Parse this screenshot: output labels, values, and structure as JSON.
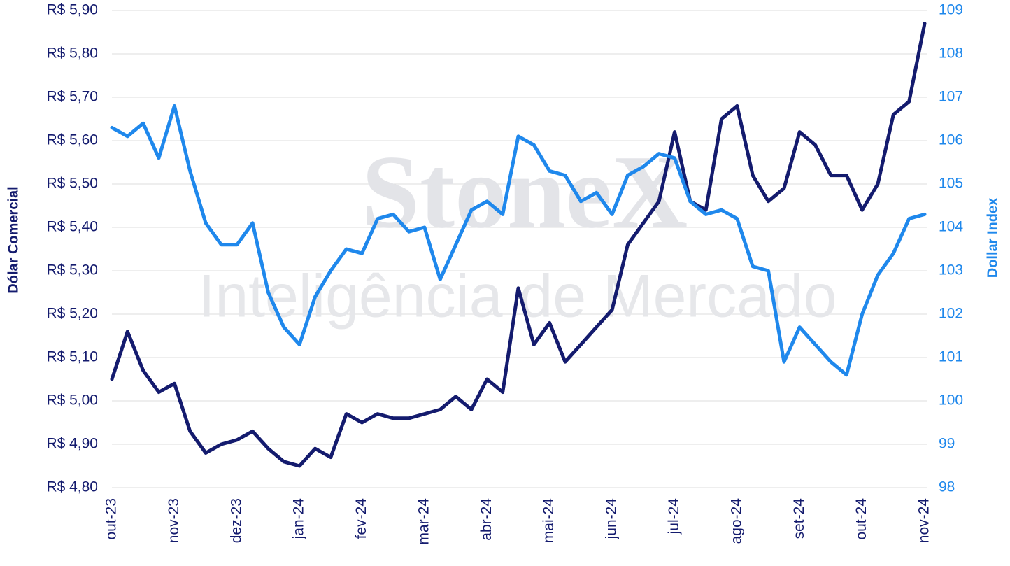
{
  "chart_data": {
    "type": "line",
    "watermark": [
      "StoneX",
      "Inteligência de Mercado"
    ],
    "y_label": "Dólar Comercial",
    "y2_label": "Dollar Index",
    "categories": [
      "out-23",
      null,
      null,
      null,
      "nov-23",
      null,
      null,
      null,
      "dez-23",
      null,
      null,
      null,
      "jan-24",
      null,
      null,
      null,
      "fev-24",
      null,
      null,
      null,
      "mar-24",
      null,
      null,
      null,
      "abr-24",
      null,
      null,
      null,
      "mai-24",
      null,
      null,
      null,
      "jun-24",
      null,
      null,
      null,
      "jul-24",
      null,
      null,
      null,
      "ago-24",
      null,
      null,
      null,
      "set-24",
      null,
      null,
      null,
      "out-24",
      null,
      null,
      null,
      "nov-24"
    ],
    "series": [
      {
        "name": "Dólar Comercial",
        "color": "#141b6e",
        "axis": "y",
        "values": [
          5.05,
          5.16,
          5.07,
          5.02,
          5.04,
          4.93,
          4.88,
          4.9,
          4.91,
          4.93,
          4.89,
          4.86,
          4.85,
          4.89,
          4.87,
          4.97,
          4.95,
          4.97,
          4.96,
          4.96,
          4.97,
          4.98,
          5.01,
          4.98,
          5.05,
          5.02,
          5.26,
          5.13,
          5.18,
          5.09,
          5.13,
          5.17,
          5.21,
          5.36,
          5.41,
          5.46,
          5.62,
          5.46,
          5.44,
          5.65,
          5.68,
          5.52,
          5.46,
          5.49,
          5.62,
          5.59,
          5.52,
          5.52,
          5.44,
          5.5,
          5.66,
          5.69,
          5.87
        ]
      },
      {
        "name": "Dollar Index",
        "color": "#1f88ec",
        "axis": "y2",
        "values": [
          106.3,
          106.1,
          106.4,
          105.6,
          106.8,
          105.3,
          104.1,
          103.6,
          103.6,
          104.1,
          102.5,
          101.7,
          101.3,
          102.4,
          103.0,
          103.5,
          103.4,
          104.2,
          104.3,
          103.9,
          104.0,
          102.8,
          103.6,
          104.4,
          104.6,
          104.3,
          106.1,
          105.9,
          105.3,
          105.2,
          104.6,
          104.8,
          104.3,
          105.2,
          105.4,
          105.7,
          105.6,
          104.6,
          104.3,
          104.4,
          104.2,
          103.1,
          103.0,
          100.9,
          101.7,
          101.3,
          100.9,
          100.6,
          102.0,
          102.9,
          103.4,
          104.2,
          104.3
        ]
      }
    ],
    "ylim": [
      4.8,
      5.9
    ],
    "yticks": [
      {
        "value": 4.8,
        "label": "R$ 4,80"
      },
      {
        "value": 4.9,
        "label": "R$ 4,90"
      },
      {
        "value": 5.0,
        "label": "R$ 5,00"
      },
      {
        "value": 5.1,
        "label": "R$ 5,10"
      },
      {
        "value": 5.2,
        "label": "R$ 5,20"
      },
      {
        "value": 5.3,
        "label": "R$ 5,30"
      },
      {
        "value": 5.4,
        "label": "R$ 5,40"
      },
      {
        "value": 5.5,
        "label": "R$ 5,50"
      },
      {
        "value": 5.6,
        "label": "R$ 5,60"
      },
      {
        "value": 5.7,
        "label": "R$ 5,70"
      },
      {
        "value": 5.8,
        "label": "R$ 5,80"
      },
      {
        "value": 5.9,
        "label": "R$ 5,90"
      }
    ],
    "y2lim": [
      98,
      109
    ],
    "y2ticks": [
      98,
      99,
      100,
      101,
      102,
      103,
      104,
      105,
      106,
      107,
      108,
      109
    ],
    "grid": true
  }
}
